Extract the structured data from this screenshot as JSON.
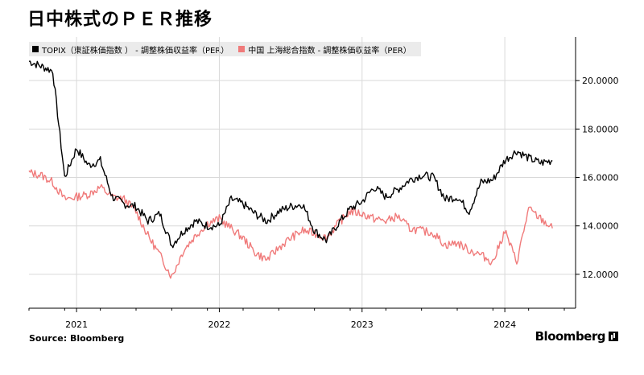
{
  "title": "日中株式のＰＥＲ推移",
  "legend": {
    "series1": "TOPIX（東証株価指数 ） - 調整株価収益率（PER）",
    "series2": "中国 上海総合指数 - 調整株価収益率（PER）"
  },
  "source": "Source: Bloomberg",
  "brand": "Bloomberg",
  "colors": {
    "topix": "#000000",
    "shanghai": "#f07a7a",
    "grid": "#d9d9d9"
  },
  "chart_data": {
    "type": "line",
    "x_tick_labels": [
      "2021",
      "2022",
      "2023",
      "2024"
    ],
    "y_tick_labels": [
      "12.0000",
      "14.0000",
      "16.0000",
      "18.0000",
      "20.0000"
    ],
    "y_ticks": [
      12,
      14,
      16,
      18,
      20
    ],
    "ylim": [
      10.6,
      21.8
    ],
    "xlim": [
      "2020-09",
      "2024-06"
    ],
    "x_tick_positions": [
      "2021-01",
      "2022-01",
      "2023-01",
      "2024-01"
    ],
    "x": [
      "2020-09",
      "2020-10",
      "2020-11",
      "2020-12",
      "2021-01",
      "2021-02",
      "2021-03",
      "2021-04",
      "2021-05",
      "2021-06",
      "2021-07",
      "2021-08",
      "2021-09",
      "2021-10",
      "2021-11",
      "2021-12",
      "2022-01",
      "2022-02",
      "2022-03",
      "2022-04",
      "2022-05",
      "2022-06",
      "2022-07",
      "2022-08",
      "2022-09",
      "2022-10",
      "2022-11",
      "2022-12",
      "2023-01",
      "2023-02",
      "2023-03",
      "2023-04",
      "2023-05",
      "2023-06",
      "2023-07",
      "2023-08",
      "2023-09",
      "2023-10",
      "2023-11",
      "2023-12",
      "2024-01",
      "2024-02",
      "2024-03",
      "2024-04",
      "2024-05"
    ],
    "series": [
      {
        "name": "TOPIX（東証株価指数 ） - 調整株価収益率（PER）",
        "values": [
          20.8,
          20.6,
          20.4,
          16.0,
          17.2,
          16.5,
          16.7,
          15.2,
          14.9,
          14.8,
          14.2,
          14.5,
          13.2,
          13.8,
          14.2,
          14.0,
          14.0,
          15.1,
          14.9,
          14.5,
          14.2,
          14.6,
          14.8,
          14.9,
          13.8,
          13.4,
          14.1,
          14.7,
          15.0,
          15.6,
          15.2,
          15.5,
          15.9,
          16.1,
          16.0,
          15.1,
          15.2,
          14.6,
          15.8,
          15.9,
          16.7,
          17.1,
          16.8,
          16.6,
          16.7
        ]
      },
      {
        "name": "中国 上海総合指数 - 調整株価収益率（PER）",
        "values": [
          16.2,
          16.1,
          15.8,
          15.1,
          15.2,
          15.3,
          15.6,
          15.2,
          15.1,
          14.6,
          13.6,
          12.8,
          11.9,
          13.0,
          13.6,
          14.1,
          14.3,
          13.9,
          13.5,
          12.9,
          12.6,
          13.1,
          13.5,
          13.8,
          13.7,
          13.5,
          14.1,
          14.6,
          14.5,
          14.3,
          14.2,
          14.4,
          13.9,
          13.8,
          13.7,
          13.2,
          13.3,
          13.0,
          12.8,
          12.5,
          13.8,
          12.5,
          14.7,
          14.3,
          13.9
        ]
      }
    ],
    "grid": true,
    "legend_position": "top-left",
    "y_axis_side": "right"
  }
}
